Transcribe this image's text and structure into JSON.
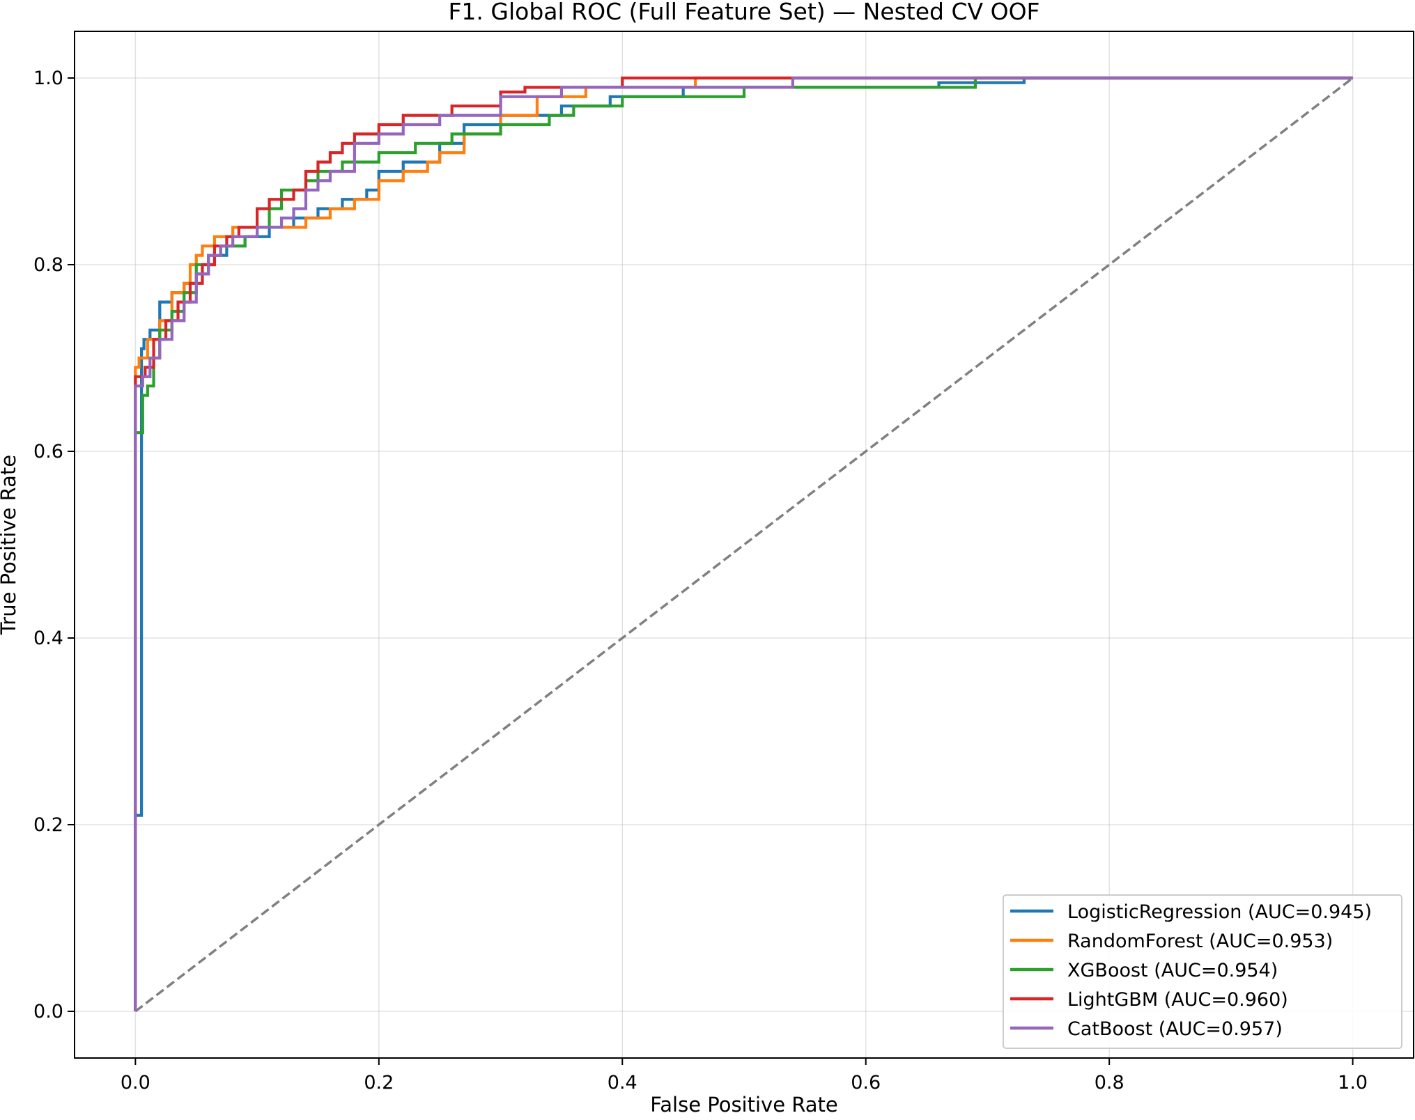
{
  "chart_data": {
    "type": "line",
    "title": "F1. Global ROC (Full Feature Set) — Nested CV OOF",
    "xlabel": "False Positive Rate",
    "ylabel": "True Positive Rate",
    "xlim": [
      -0.05,
      1.05
    ],
    "ylim": [
      -0.05,
      1.05
    ],
    "xticks": [
      "0.0",
      "0.2",
      "0.4",
      "0.6",
      "0.8",
      "1.0"
    ],
    "yticks": [
      "0.0",
      "0.2",
      "0.4",
      "0.6",
      "0.8",
      "1.0"
    ],
    "grid": true,
    "legend_position": "lower-right",
    "reference_line": {
      "x": [
        0,
        1
      ],
      "y": [
        0,
        1
      ],
      "color": "#808080",
      "style": "dashed"
    },
    "series": [
      {
        "name": "LogisticRegression (AUC=0.945)",
        "color": "#1f77b4",
        "x": [
          0,
          0,
          0.005,
          0.005,
          0.007,
          0.007,
          0.012,
          0.012,
          0.02,
          0.02,
          0.03,
          0.03,
          0.04,
          0.04,
          0.05,
          0.05,
          0.06,
          0.06,
          0.065,
          0.065,
          0.075,
          0.075,
          0.09,
          0.09,
          0.11,
          0.11,
          0.13,
          0.13,
          0.15,
          0.15,
          0.17,
          0.17,
          0.19,
          0.19,
          0.2,
          0.2,
          0.22,
          0.22,
          0.25,
          0.25,
          0.27,
          0.27,
          0.3,
          0.3,
          0.35,
          0.35,
          0.39,
          0.39,
          0.42,
          0.42,
          0.45,
          0.45,
          0.48,
          0.48,
          0.5,
          0.5,
          0.6,
          0.6,
          0.66,
          0.66,
          0.73,
          0.73,
          1.0
        ],
        "y": [
          0,
          0.21,
          0.21,
          0.71,
          0.71,
          0.72,
          0.72,
          0.73,
          0.73,
          0.76,
          0.76,
          0.77,
          0.77,
          0.78,
          0.78,
          0.79,
          0.79,
          0.8,
          0.8,
          0.81,
          0.81,
          0.82,
          0.82,
          0.83,
          0.83,
          0.84,
          0.84,
          0.85,
          0.85,
          0.86,
          0.86,
          0.87,
          0.87,
          0.88,
          0.88,
          0.9,
          0.9,
          0.91,
          0.91,
          0.93,
          0.93,
          0.95,
          0.95,
          0.96,
          0.96,
          0.97,
          0.97,
          0.98,
          0.98,
          0.98,
          0.98,
          0.99,
          0.99,
          0.99,
          0.99,
          0.99,
          0.99,
          0.99,
          0.99,
          0.995,
          0.995,
          1.0,
          1.0
        ]
      },
      {
        "name": "RandomForest (AUC=0.953)",
        "color": "#ff7f0e",
        "x": [
          0,
          0,
          0.003,
          0.003,
          0.01,
          0.01,
          0.02,
          0.02,
          0.03,
          0.03,
          0.04,
          0.04,
          0.045,
          0.045,
          0.05,
          0.05,
          0.055,
          0.055,
          0.065,
          0.065,
          0.08,
          0.08,
          0.1,
          0.1,
          0.12,
          0.12,
          0.14,
          0.14,
          0.16,
          0.16,
          0.18,
          0.18,
          0.2,
          0.2,
          0.22,
          0.22,
          0.24,
          0.24,
          0.25,
          0.25,
          0.27,
          0.27,
          0.3,
          0.3,
          0.33,
          0.33,
          0.37,
          0.37,
          0.41,
          0.41,
          0.46,
          0.46,
          0.49,
          0.49,
          0.52,
          0.52,
          1.0
        ],
        "y": [
          0,
          0.69,
          0.69,
          0.7,
          0.7,
          0.72,
          0.72,
          0.74,
          0.74,
          0.77,
          0.77,
          0.78,
          0.78,
          0.8,
          0.8,
          0.81,
          0.81,
          0.82,
          0.82,
          0.83,
          0.83,
          0.84,
          0.84,
          0.84,
          0.84,
          0.84,
          0.84,
          0.85,
          0.85,
          0.86,
          0.86,
          0.87,
          0.87,
          0.89,
          0.89,
          0.9,
          0.9,
          0.91,
          0.91,
          0.92,
          0.92,
          0.94,
          0.94,
          0.96,
          0.96,
          0.98,
          0.98,
          0.99,
          0.99,
          0.99,
          0.99,
          1.0,
          1.0,
          1.0,
          1.0,
          1.0,
          1.0
        ]
      },
      {
        "name": "XGBoost (AUC=0.954)",
        "color": "#2ca02c",
        "x": [
          0,
          0,
          0.006,
          0.006,
          0.01,
          0.01,
          0.015,
          0.015,
          0.02,
          0.02,
          0.03,
          0.03,
          0.04,
          0.04,
          0.05,
          0.05,
          0.06,
          0.06,
          0.07,
          0.07,
          0.09,
          0.09,
          0.1,
          0.1,
          0.11,
          0.11,
          0.12,
          0.12,
          0.13,
          0.13,
          0.14,
          0.14,
          0.15,
          0.15,
          0.17,
          0.17,
          0.2,
          0.2,
          0.23,
          0.23,
          0.26,
          0.26,
          0.3,
          0.3,
          0.34,
          0.34,
          0.36,
          0.36,
          0.4,
          0.4,
          0.5,
          0.5,
          0.69,
          0.69,
          1.0
        ],
        "y": [
          0,
          0.62,
          0.62,
          0.66,
          0.66,
          0.67,
          0.67,
          0.7,
          0.7,
          0.73,
          0.73,
          0.75,
          0.75,
          0.77,
          0.77,
          0.8,
          0.8,
          0.81,
          0.81,
          0.82,
          0.82,
          0.83,
          0.83,
          0.84,
          0.84,
          0.86,
          0.86,
          0.88,
          0.88,
          0.88,
          0.88,
          0.89,
          0.89,
          0.9,
          0.9,
          0.91,
          0.91,
          0.92,
          0.92,
          0.93,
          0.93,
          0.94,
          0.94,
          0.95,
          0.95,
          0.96,
          0.96,
          0.97,
          0.97,
          0.98,
          0.98,
          0.99,
          0.99,
          1.0,
          1.0
        ]
      },
      {
        "name": "LightGBM (AUC=0.960)",
        "color": "#d62728",
        "x": [
          0,
          0,
          0.008,
          0.008,
          0.015,
          0.015,
          0.025,
          0.025,
          0.035,
          0.035,
          0.045,
          0.045,
          0.055,
          0.055,
          0.065,
          0.065,
          0.075,
          0.075,
          0.085,
          0.085,
          0.1,
          0.1,
          0.11,
          0.11,
          0.13,
          0.13,
          0.14,
          0.14,
          0.15,
          0.15,
          0.16,
          0.16,
          0.17,
          0.17,
          0.18,
          0.18,
          0.2,
          0.2,
          0.22,
          0.22,
          0.26,
          0.26,
          0.3,
          0.3,
          0.32,
          0.32,
          0.4,
          0.4,
          0.43,
          0.43,
          1.0
        ],
        "y": [
          0,
          0.68,
          0.68,
          0.69,
          0.69,
          0.72,
          0.72,
          0.74,
          0.74,
          0.76,
          0.76,
          0.78,
          0.78,
          0.8,
          0.8,
          0.82,
          0.82,
          0.83,
          0.83,
          0.84,
          0.84,
          0.86,
          0.86,
          0.87,
          0.87,
          0.88,
          0.88,
          0.9,
          0.9,
          0.91,
          0.91,
          0.92,
          0.92,
          0.93,
          0.93,
          0.94,
          0.94,
          0.95,
          0.95,
          0.96,
          0.96,
          0.97,
          0.97,
          0.985,
          0.985,
          0.99,
          0.99,
          1.0,
          1.0,
          1.0,
          1.0
        ]
      },
      {
        "name": "CatBoost (AUC=0.957)",
        "color": "#9467bd",
        "x": [
          0,
          0,
          0.006,
          0.006,
          0.012,
          0.012,
          0.02,
          0.02,
          0.03,
          0.03,
          0.04,
          0.04,
          0.05,
          0.05,
          0.06,
          0.06,
          0.07,
          0.07,
          0.08,
          0.08,
          0.1,
          0.1,
          0.12,
          0.12,
          0.13,
          0.13,
          0.14,
          0.14,
          0.15,
          0.15,
          0.16,
          0.16,
          0.18,
          0.18,
          0.2,
          0.2,
          0.22,
          0.22,
          0.25,
          0.25,
          0.3,
          0.3,
          0.35,
          0.35,
          0.54,
          0.54,
          1.0
        ],
        "y": [
          0,
          0.67,
          0.67,
          0.68,
          0.68,
          0.7,
          0.7,
          0.72,
          0.72,
          0.74,
          0.74,
          0.76,
          0.76,
          0.79,
          0.79,
          0.81,
          0.81,
          0.82,
          0.82,
          0.83,
          0.83,
          0.84,
          0.84,
          0.85,
          0.85,
          0.86,
          0.86,
          0.88,
          0.88,
          0.89,
          0.89,
          0.9,
          0.9,
          0.93,
          0.93,
          0.94,
          0.94,
          0.95,
          0.95,
          0.96,
          0.96,
          0.98,
          0.98,
          0.99,
          0.99,
          1.0,
          1.0
        ]
      }
    ]
  }
}
